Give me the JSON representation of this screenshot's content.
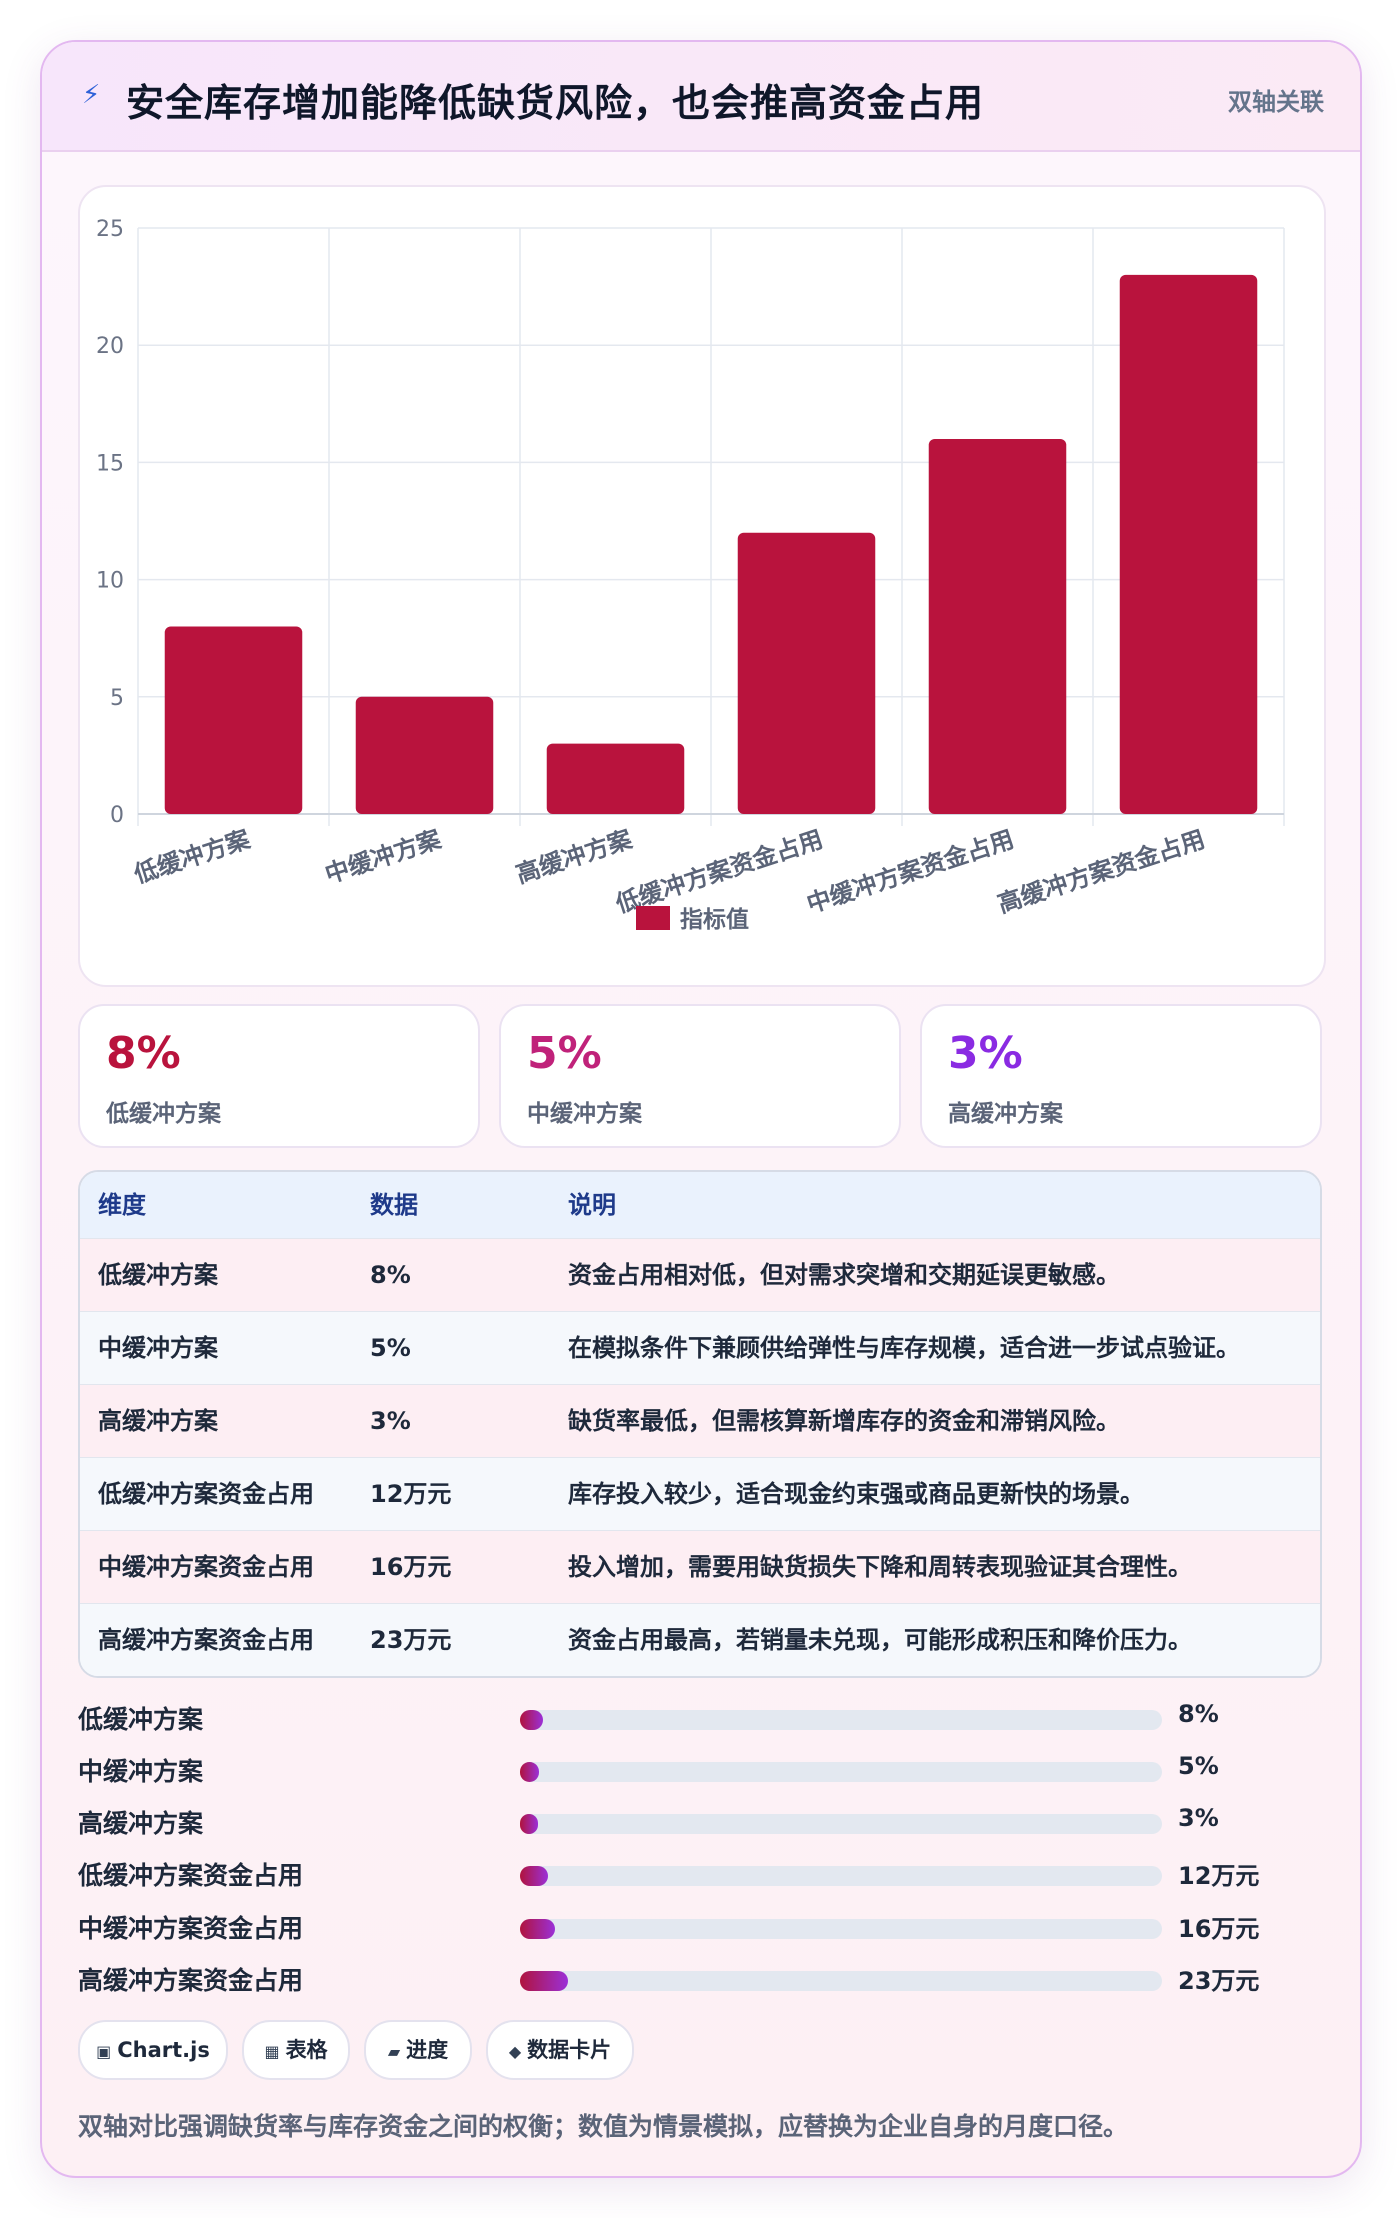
{
  "header": {
    "icon": "lightning-icon",
    "title": "安全库存增加能降低缺货风险，也会推高资金占用",
    "tag": "双轴关联"
  },
  "chart_data": {
    "type": "bar",
    "categories": [
      "低缓冲方案",
      "中缓冲方案",
      "高缓冲方案",
      "低缓冲方案资金占用",
      "中缓冲方案资金占用",
      "高缓冲方案资金占用"
    ],
    "series": [
      {
        "name": "指标值",
        "values": [
          8,
          5,
          3,
          12,
          16,
          23
        ],
        "color": "#b9133d"
      }
    ],
    "ylim": [
      0,
      25
    ],
    "yticks": [
      "0",
      "5",
      "10",
      "15",
      "20",
      "25"
    ],
    "grid": true,
    "legend_position": "bottom"
  },
  "stats": [
    {
      "value": "8%",
      "label": "低缓冲方案",
      "color": "#b9133d"
    },
    {
      "value": "5%",
      "label": "中缓冲方案",
      "color": "#c0227a"
    },
    {
      "value": "3%",
      "label": "高缓冲方案",
      "color": "#8a2be2"
    }
  ],
  "table": {
    "headers": [
      "维度",
      "数据",
      "说明"
    ],
    "rows": [
      [
        "低缓冲方案",
        "8%",
        "资金占用相对低，但对需求突增和交期延误更敏感。"
      ],
      [
        "中缓冲方案",
        "5%",
        "在模拟条件下兼顾供给弹性与库存规模，适合进一步试点验证。"
      ],
      [
        "高缓冲方案",
        "3%",
        "缺货率最低，但需核算新增库存的资金和滞销风险。"
      ],
      [
        "低缓冲方案资金占用",
        "12万元",
        "库存投入较少，适合现金约束强或商品更新快的场景。"
      ],
      [
        "中缓冲方案资金占用",
        "16万元",
        "投入增加，需要用缺货损失下降和周转表现验证其合理性。"
      ],
      [
        "高缓冲方案资金占用",
        "23万元",
        "资金占用最高，若销量未兑现，可能形成积压和降价压力。"
      ]
    ]
  },
  "progress": [
    {
      "label": "低缓冲方案",
      "value": "8%",
      "fraction": 0.036
    },
    {
      "label": "中缓冲方案",
      "value": "5%",
      "fraction": 0.03
    },
    {
      "label": "高缓冲方案",
      "value": "3%",
      "fraction": 0.028
    },
    {
      "label": "低缓冲方案资金占用",
      "value": "12万元",
      "fraction": 0.044
    },
    {
      "label": "中缓冲方案资金占用",
      "value": "16万元",
      "fraction": 0.055
    },
    {
      "label": "高缓冲方案资金占用",
      "value": "23万元",
      "fraction": 0.075
    }
  ],
  "chips": [
    {
      "icon": "chart-icon",
      "glyph": "▣",
      "label": "Chart.js"
    },
    {
      "icon": "table-icon",
      "glyph": "▦",
      "label": "表格"
    },
    {
      "icon": "progress-icon",
      "glyph": "▰",
      "label": "进度"
    },
    {
      "icon": "card-icon",
      "glyph": "◆",
      "label": "数据卡片"
    }
  ],
  "footnote": "双轴对比强调缺货率与库存资金之间的权衡；数值为情景模拟，应替换为企业自身的月度口径。"
}
